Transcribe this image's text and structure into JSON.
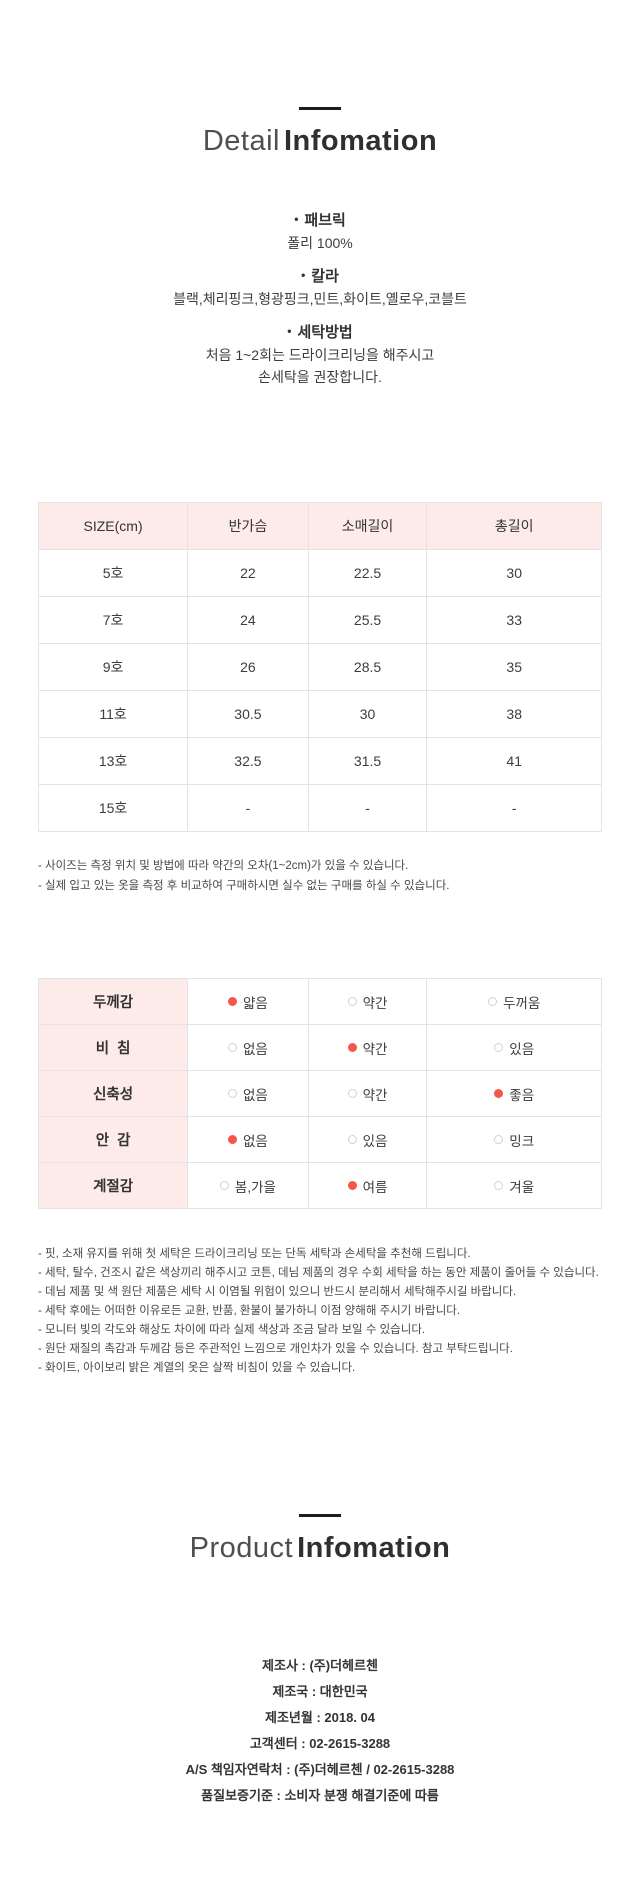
{
  "detail_section": {
    "title_light": "Detail",
    "title_bold": "Infomation"
  },
  "info_blocks": [
    {
      "heading": "패브릭",
      "lines": [
        "폴리 100%"
      ]
    },
    {
      "heading": "칼라",
      "lines": [
        "블랙,체리핑크,형광핑크,민트,화이트,옐로우,코블트"
      ]
    },
    {
      "heading": "세탁방법",
      "lines": [
        "처음 1~2회는 드라이크리닝을 해주시고",
        "손세탁을 권장합니다."
      ]
    }
  ],
  "size_table": {
    "headers": [
      "SIZE(cm)",
      "반가슴",
      "소매길이",
      "총길이"
    ],
    "rows": [
      [
        "5호",
        "22",
        "22.5",
        "30"
      ],
      [
        "7호",
        "24",
        "25.5",
        "33"
      ],
      [
        "9호",
        "26",
        "28.5",
        "35"
      ],
      [
        "11호",
        "30.5",
        "30",
        "38"
      ],
      [
        "13호",
        "32.5",
        "31.5",
        "41"
      ],
      [
        "15호",
        "-",
        "-",
        "-"
      ]
    ]
  },
  "size_notes": [
    "- 사이즈는 측정 위치 및 방법에 따라 약간의 오차(1~2cm)가 있을 수 있습니다.",
    "- 실제 입고 있는 옷을 측정 후 비교하여 구매하시면 실수 없는 구매를 하실 수 있습니다."
  ],
  "feel_table": {
    "rows": [
      {
        "label": "두께감",
        "options": [
          {
            "text": "얇음",
            "selected": true
          },
          {
            "text": "약간",
            "selected": false
          },
          {
            "text": "두꺼움",
            "selected": false
          }
        ]
      },
      {
        "label": "비  침",
        "options": [
          {
            "text": "없음",
            "selected": false
          },
          {
            "text": "약간",
            "selected": true
          },
          {
            "text": "있음",
            "selected": false
          }
        ]
      },
      {
        "label": "신축성",
        "options": [
          {
            "text": "없음",
            "selected": false
          },
          {
            "text": "약간",
            "selected": false
          },
          {
            "text": "좋음",
            "selected": true
          }
        ]
      },
      {
        "label": "안  감",
        "options": [
          {
            "text": "없음",
            "selected": true
          },
          {
            "text": "있음",
            "selected": false
          },
          {
            "text": "밍크",
            "selected": false
          }
        ]
      },
      {
        "label": "계절감",
        "options": [
          {
            "text": "봄,가을",
            "selected": false
          },
          {
            "text": "여름",
            "selected": true
          },
          {
            "text": "겨울",
            "selected": false
          }
        ]
      }
    ]
  },
  "care_notes": [
    "- 핏, 소재 유지를 위해 첫 세탁은 드라이크리닝 또는 단독 세탁과 손세탁을 추천해 드립니다.",
    "- 세탁, 탈수, 건조시 같은 색상끼리 해주시고 코튼, 데님 제품의 경우 수회 세탁을 하는 동안 제품이 줄어들 수 있습니다.",
    "- 데님 제품 및 색 원단 제품은 세탁 시 이염될 위험이 있으니 반드시 분리해서 세탁해주시길 바랍니다.",
    "- 세탁 후에는 어떠한 이유로든 교환, 반품, 환불이 불가하니 이점 양해해 주시기 바랍니다.",
    "- 모니터 빛의 각도와 해상도 차이에 따라 실제 색상과 조금 달라 보일 수 있습니다.",
    "- 원단 재질의 촉감과 두께감 등은 주관적인 느낌으로 개인차가 있을 수 있습니다. 참고 부탁드립니다.",
    "- 화이트, 아이보리 밝은 계열의 옷은 살짝 비침이 있을 수 있습니다."
  ],
  "product_section": {
    "title_light": "Product",
    "title_bold": "Infomation"
  },
  "product_info": [
    "제조사 : (주)더헤르첸",
    "제조국 : 대한민국",
    "제조년월 : 2018. 04",
    "고객센터 : 02-2615-3288",
    "A/S 책임자연락처 : (주)더헤르첸 / 02-2615-3288",
    "품질보증기준 : 소비자 분쟁 해결기준에 따름"
  ],
  "colors": {
    "accent_red": "#f5554a",
    "header_pink": "#fcebe8"
  }
}
